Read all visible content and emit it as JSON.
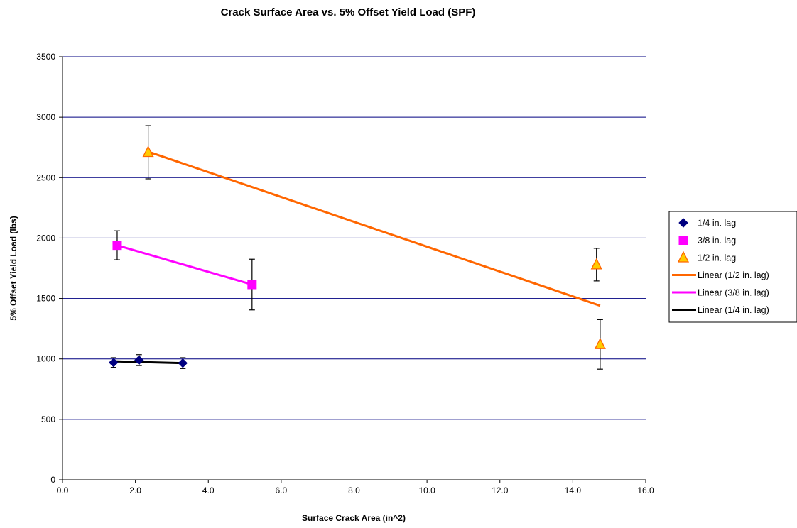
{
  "chart_data": {
    "type": "scatter",
    "title": "Crack Surface Area vs. 5% Offset Yield Load (SPF)",
    "xlabel": "Surface Crack Area (in^2)",
    "ylabel": "5% Offset Yield Load (lbs)",
    "xlim": [
      0,
      16
    ],
    "ylim": [
      0,
      3500
    ],
    "x_ticks": [
      "0.0",
      "2.0",
      "4.0",
      "6.0",
      "8.0",
      "10.0",
      "12.0",
      "14.0",
      "16.0"
    ],
    "y_ticks": [
      "0",
      "500",
      "1000",
      "1500",
      "2000",
      "2500",
      "3000",
      "3500"
    ],
    "grid": "horizontal",
    "legend_position": "right",
    "series": [
      {
        "name": "1/4 in. lag",
        "marker": "diamond",
        "color": "#000080",
        "points": [
          {
            "x": 1.4,
            "y": 970,
            "err_low": 40,
            "err_high": 40
          },
          {
            "x": 2.1,
            "y": 990,
            "err_low": 45,
            "err_high": 45
          },
          {
            "x": 3.3,
            "y": 965,
            "err_low": 45,
            "err_high": 45
          }
        ]
      },
      {
        "name": "3/8 in. lag",
        "marker": "square",
        "color": "#ff00ff",
        "points": [
          {
            "x": 1.5,
            "y": 1940,
            "err_low": 120,
            "err_high": 120
          },
          {
            "x": 5.2,
            "y": 1615,
            "err_low": 210,
            "err_high": 210
          }
        ]
      },
      {
        "name": "1/2 in. lag",
        "marker": "triangle",
        "color": "#ffcc00",
        "points": [
          {
            "x": 2.35,
            "y": 2710,
            "err_low": 220,
            "err_high": 220
          },
          {
            "x": 14.65,
            "y": 1780,
            "err_low": 135,
            "err_high": 135
          },
          {
            "x": 14.75,
            "y": 1120,
            "err_low": 205,
            "err_high": 205
          }
        ]
      }
    ],
    "trendlines": [
      {
        "name": "Linear (1/2 in. lag)",
        "color": "#ff6600",
        "x": [
          2.35,
          14.75
        ],
        "y": [
          2715,
          1440
        ]
      },
      {
        "name": "Linear (3/8 in. lag)",
        "color": "#ff00ff",
        "x": [
          1.5,
          5.2
        ],
        "y": [
          1940,
          1615
        ]
      },
      {
        "name": "Linear (1/4 in. lag)",
        "color": "#000000",
        "x": [
          1.4,
          3.3
        ],
        "y": [
          980,
          965
        ]
      }
    ]
  }
}
